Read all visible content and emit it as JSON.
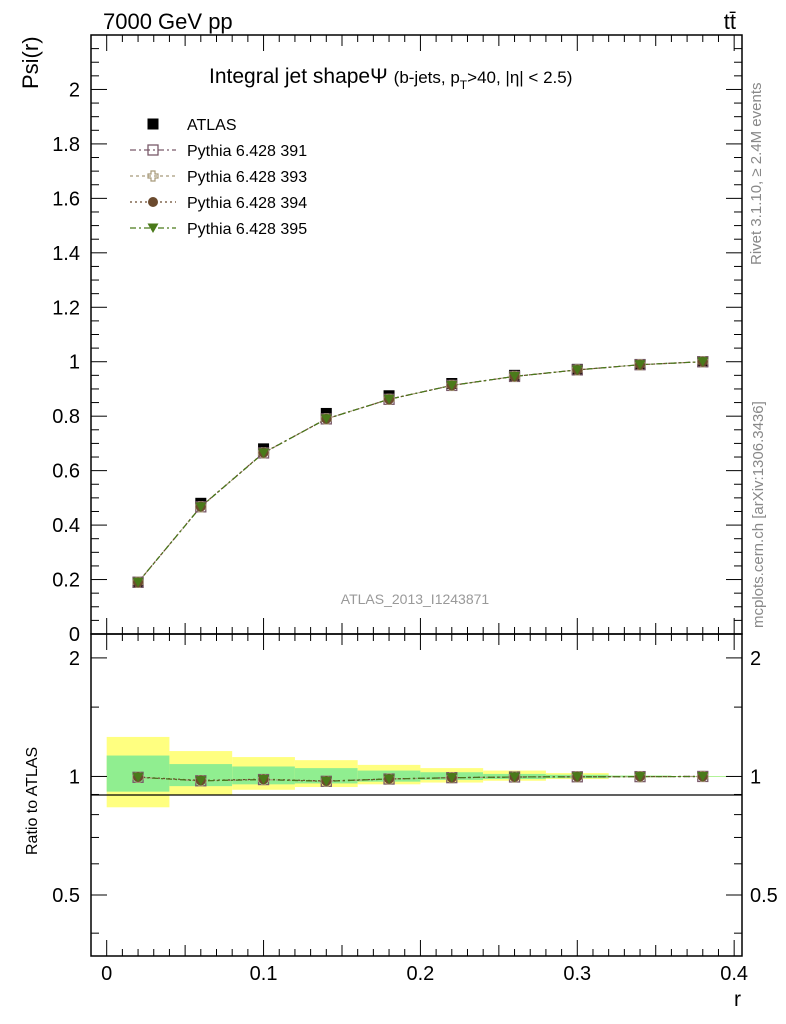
{
  "header": {
    "beam": "7000 GeV pp",
    "process": "tt̄",
    "side_top": "Rivet 3.1.10, ≥ 2.4M events",
    "side_bottom": "mcplots.cern.ch [arXiv:1306.3436]",
    "watermark": "ATLAS_2013_I1243871"
  },
  "chart_data": [
    {
      "type": "scatter",
      "title_main": "Integral jet shape",
      "title_symbol": "Ψ",
      "title_sub": "(b-jets, p",
      "title_sub_index": "T",
      "title_sub_rest": ">40, |η| < 2.5)",
      "ylabel": "Psi(r)",
      "xlim": [
        -0.01,
        0.405
      ],
      "ylim": [
        0,
        2.2
      ],
      "yticks": [
        0,
        0.2,
        0.4,
        0.6,
        0.8,
        1,
        1.2,
        1.4,
        1.6,
        1.8,
        2
      ],
      "ytick_labels": [
        "0",
        "0.2",
        "0.4",
        "0.6",
        "0.8",
        "1",
        "1.2",
        "1.4",
        "1.6",
        "1.8",
        "2"
      ],
      "x": [
        0.02,
        0.06,
        0.1,
        0.14,
        0.18,
        0.22,
        0.26,
        0.3,
        0.34,
        0.38
      ],
      "series": [
        {
          "name": "ATLAS",
          "marker": "square-filled",
          "color": "#000000",
          "values": [
            0.19,
            0.48,
            0.68,
            0.81,
            0.875,
            0.92,
            0.95,
            0.972,
            0.99,
            1.0
          ]
        },
        {
          "name": "Pythia 6.428 391",
          "marker": "square-open",
          "color": "#7a5a6a",
          "values": [
            0.19,
            0.467,
            0.665,
            0.79,
            0.862,
            0.913,
            0.946,
            0.97,
            0.989,
            1.0
          ]
        },
        {
          "name": "Pythia 6.428 393",
          "marker": "cross-open",
          "color": "#a89a7a",
          "values": [
            0.19,
            0.467,
            0.665,
            0.79,
            0.862,
            0.913,
            0.946,
            0.97,
            0.989,
            1.0
          ]
        },
        {
          "name": "Pythia 6.428 394",
          "marker": "circle-filled",
          "color": "#6b4a2e",
          "values": [
            0.19,
            0.468,
            0.666,
            0.79,
            0.862,
            0.913,
            0.946,
            0.97,
            0.989,
            1.0
          ]
        },
        {
          "name": "Pythia 6.428 395",
          "marker": "triangle-down-filled",
          "color": "#4a7a1a",
          "values": [
            0.19,
            0.467,
            0.665,
            0.79,
            0.862,
            0.913,
            0.946,
            0.97,
            0.989,
            1.0
          ]
        }
      ]
    },
    {
      "type": "scatter",
      "ylabel": "Ratio to ATLAS",
      "xlabel": "r",
      "xlim": [
        -0.01,
        0.405
      ],
      "ylim": [
        0.35,
        2.3
      ],
      "yscale": "log",
      "yticks": [
        0.5,
        1,
        2
      ],
      "ytick_labels": [
        "0.5",
        "1",
        "2"
      ],
      "xticks": [
        0,
        0.1,
        0.2,
        0.3,
        0.4
      ],
      "xtick_labels": [
        "0",
        "0.1",
        "0.2",
        "0.3",
        "0.4"
      ],
      "x": [
        0.02,
        0.06,
        0.1,
        0.14,
        0.18,
        0.22,
        0.26,
        0.3,
        0.34,
        0.38
      ],
      "bins": [
        [
          0.0,
          0.04
        ],
        [
          0.04,
          0.08
        ],
        [
          0.08,
          0.12
        ],
        [
          0.12,
          0.16
        ],
        [
          0.16,
          0.2
        ],
        [
          0.2,
          0.24
        ],
        [
          0.24,
          0.28
        ],
        [
          0.28,
          0.32
        ],
        [
          0.32,
          0.36
        ],
        [
          0.36,
          0.4
        ]
      ],
      "band_inner": [
        [
          0.915,
          1.13
        ],
        [
          0.945,
          1.075
        ],
        [
          0.955,
          1.06
        ],
        [
          0.96,
          1.05
        ],
        [
          0.97,
          1.035
        ],
        [
          0.98,
          1.025
        ],
        [
          0.985,
          1.015
        ],
        [
          0.99,
          1.01
        ],
        [
          0.995,
          1.005
        ],
        [
          0.998,
          1.002
        ]
      ],
      "band_outer": [
        [
          0.835,
          1.26
        ],
        [
          0.895,
          1.16
        ],
        [
          0.925,
          1.12
        ],
        [
          0.94,
          1.1
        ],
        [
          0.955,
          1.07
        ],
        [
          0.965,
          1.05
        ],
        [
          0.975,
          1.035
        ],
        [
          0.985,
          1.02
        ],
        [
          0.995,
          1.005
        ],
        [
          0.998,
          1.002
        ]
      ],
      "band_inner_color": "#90ee90",
      "band_outer_color": "#ffff80",
      "series": [
        {
          "name": "Pythia 6.428 391",
          "values": [
            0.995,
            0.975,
            0.982,
            0.972,
            0.985,
            0.993,
            0.997,
            0.998,
            0.999,
            1.0
          ]
        },
        {
          "name": "Pythia 6.428 393",
          "values": [
            0.995,
            0.975,
            0.982,
            0.972,
            0.985,
            0.993,
            0.997,
            0.998,
            0.999,
            1.0
          ]
        },
        {
          "name": "Pythia 6.428 394",
          "values": [
            0.997,
            0.977,
            0.984,
            0.974,
            0.986,
            0.993,
            0.997,
            0.998,
            0.999,
            1.0
          ]
        },
        {
          "name": "Pythia 6.428 395",
          "values": [
            0.995,
            0.975,
            0.982,
            0.972,
            0.985,
            0.993,
            0.997,
            0.998,
            0.999,
            1.0
          ]
        }
      ]
    }
  ]
}
